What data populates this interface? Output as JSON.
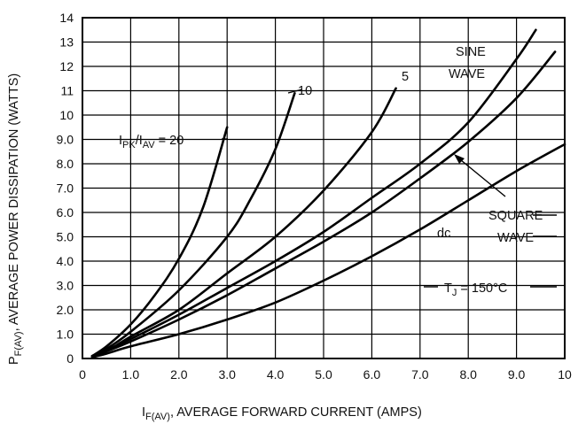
{
  "chart_data": {
    "type": "line",
    "xlabel_main": "I",
    "xlabel_sub": "F(AV)",
    "xlabel_rest": ", AVERAGE FORWARD CURRENT (AMPS)",
    "ylabel_main": "P",
    "ylabel_sub": "F(AV)",
    "ylabel_rest": ", AVERAGE POWER DISSIPATION (WATTS)",
    "xlim": [
      0,
      10
    ],
    "ylim": [
      0,
      14
    ],
    "x_ticks": [
      "0",
      "1.0",
      "2.0",
      "3.0",
      "4.0",
      "5.0",
      "6.0",
      "7.0",
      "8.0",
      "9.0",
      "10"
    ],
    "y_ticks": [
      "0",
      "1.0",
      "2.0",
      "3.0",
      "4.0",
      "5.0",
      "6.0",
      "7.0",
      "8.0",
      "9.0",
      "10",
      "11",
      "12",
      "13",
      "14"
    ],
    "grid": true,
    "series": [
      {
        "name": "20",
        "x": [
          0.2,
          0.5,
          1.0,
          1.5,
          2.0,
          2.5,
          3.0
        ],
        "y": [
          0.1,
          0.5,
          1.4,
          2.6,
          4.1,
          6.2,
          9.5
        ]
      },
      {
        "name": "10",
        "x": [
          0.2,
          0.5,
          1.0,
          2.0,
          3.0,
          3.5,
          4.0,
          4.4
        ],
        "y": [
          0.1,
          0.4,
          1.1,
          2.8,
          5.0,
          6.6,
          8.6,
          10.9
        ]
      },
      {
        "name": "5",
        "x": [
          0.2,
          0.5,
          1.0,
          2.0,
          3.0,
          4.0,
          5.0,
          6.0,
          6.5
        ],
        "y": [
          0.1,
          0.3,
          0.9,
          2.0,
          3.5,
          5.0,
          6.9,
          9.3,
          11.1
        ]
      },
      {
        "name": "SINE WAVE",
        "x": [
          0.2,
          0.5,
          1.0,
          2.0,
          3.0,
          4.0,
          5.0,
          6.0,
          7.0,
          8.0,
          9.0,
          9.4
        ],
        "y": [
          0.1,
          0.35,
          0.8,
          1.8,
          2.9,
          4.0,
          5.2,
          6.6,
          8.0,
          9.7,
          12.3,
          13.5
        ]
      },
      {
        "name": "SQUARE WAVE",
        "x": [
          0.2,
          0.5,
          1.0,
          2.0,
          3.0,
          4.0,
          5.0,
          6.0,
          7.0,
          8.0,
          9.0,
          9.8
        ],
        "y": [
          0.1,
          0.3,
          0.7,
          1.6,
          2.6,
          3.7,
          4.8,
          6.0,
          7.4,
          8.9,
          10.7,
          12.6
        ]
      },
      {
        "name": "dc",
        "x": [
          0.2,
          0.5,
          1.0,
          2.0,
          3.0,
          4.0,
          5.0,
          6.0,
          7.0,
          8.0,
          9.0,
          10.0
        ],
        "y": [
          0.05,
          0.2,
          0.5,
          1.0,
          1.6,
          2.3,
          3.2,
          4.2,
          5.3,
          6.5,
          7.7,
          8.8
        ]
      }
    ],
    "annotations": {
      "ratio_label_main": "I",
      "ratio_sub1": "PK",
      "ratio_slash": "/I",
      "ratio_sub2": "AV",
      "ratio_eq": " = 20",
      "label_10": "10",
      "label_5": "5",
      "sine_line1": "SINE",
      "sine_line2": "WAVE",
      "square_line1": "SQUARE",
      "square_line2": "WAVE",
      "dc_label": "dc",
      "tj_main": "T",
      "tj_sub": "J",
      "tj_rest": " = 150°C"
    }
  }
}
